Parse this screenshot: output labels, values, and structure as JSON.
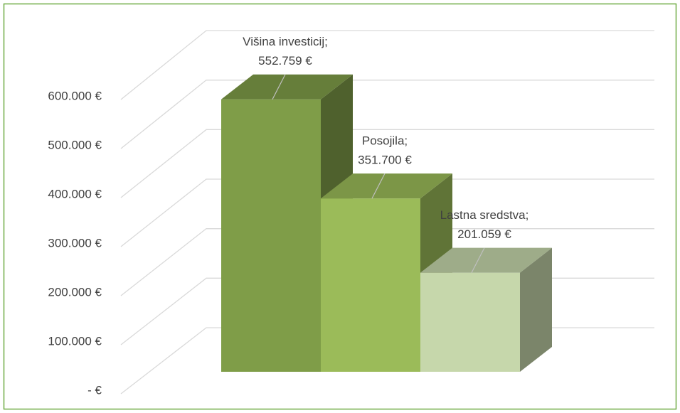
{
  "chart_data": {
    "type": "bar3d",
    "categories": [
      "Višina investicij",
      "Posojila",
      "Lastna sredstva"
    ],
    "label_separator": ";",
    "values": [
      552759,
      351700,
      201059
    ],
    "value_labels": [
      "552.759 €",
      "351.700 €",
      "201.059 €"
    ],
    "colors": [
      "#7f9d48",
      "#9bbb59",
      "#c6d7ab"
    ],
    "ylim": [
      0,
      600000
    ],
    "yticks": [
      {
        "value": 0,
        "label": "-  €"
      },
      {
        "value": 100000,
        "label": "100.000 €"
      },
      {
        "value": 200000,
        "label": "200.000 €"
      },
      {
        "value": 300000,
        "label": "300.000 €"
      },
      {
        "value": 400000,
        "label": "400.000 €"
      },
      {
        "value": 500000,
        "label": "500.000 €"
      },
      {
        "value": 600000,
        "label": "600.000 €"
      }
    ],
    "grid": true
  }
}
